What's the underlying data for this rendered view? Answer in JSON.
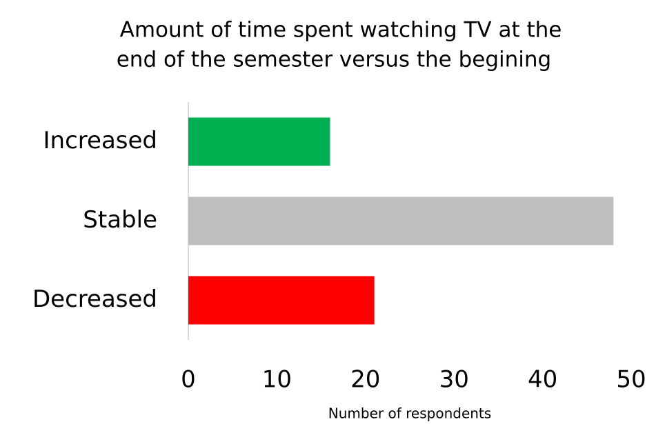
{
  "chart_data": {
    "type": "bar",
    "orientation": "horizontal",
    "title": [
      "Amount of time spent watching TV at the",
      "end of the semester versus the begining"
    ],
    "categories": [
      "Increased",
      "Stable",
      "Decreased"
    ],
    "values": [
      16,
      48,
      21
    ],
    "colors": [
      "#00b050",
      "#bfbfbf",
      "#ff0000"
    ],
    "xlabel": "Number of respondents",
    "xlim": [
      0,
      50
    ],
    "xticks": [
      0,
      10,
      20,
      30,
      40,
      50
    ],
    "grid": false
  }
}
